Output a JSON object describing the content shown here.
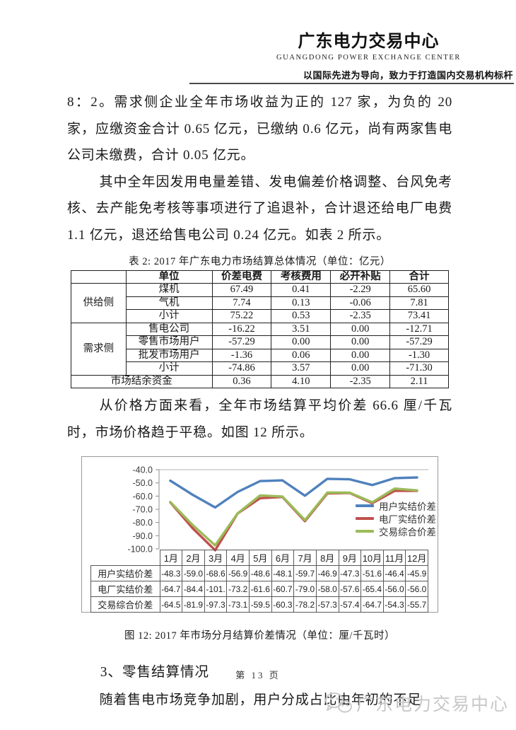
{
  "header": {
    "org_name_cn": "广东电力交易中心",
    "org_name_en": "GUANGDONG  POWER  EXCHANGE  CENTER",
    "tagline": "以国际先进为导向，致力于打造国内交易机构标杆"
  },
  "paragraphs": {
    "p1": "8：2。需求侧企业全年市场收益为正的 127 家，为负的 20 家，应缴资金合计 0.65 亿元，已缴纳 0.6 亿元，尚有两家售电公司未缴费，合计 0.05 亿元。",
    "p2": "其中全年因发用电量差错、发电偏差价格调整、台风免考核、去产能免考核等事项进行了追退补，合计退还给电厂电费 1.1 亿元，退还给售电公司 0.24 亿元。如表 2 所示。",
    "p3": "从价格方面来看，全年市场结算平均价差 66.6 厘/千瓦时，市场价格趋于平稳。如图 12 所示。",
    "section_heading": "3、零售结算情况",
    "p4": "随着售电市场竞争加剧，用户分成占比由年初的不足"
  },
  "table2": {
    "title": "表 2: 2017 年广东电力市场结算总体情况（单位：亿元）",
    "header": {
      "unit": "单位",
      "col1": "价差电费",
      "col2": "考核费用",
      "col3": "必开补贴",
      "col4": "合计"
    },
    "supply": {
      "label": "供给侧",
      "rows": [
        {
          "name": "煤机",
          "c1": "67.49",
          "c2": "0.41",
          "c3": "-2.29",
          "c4": "65.60"
        },
        {
          "name": "气机",
          "c1": "7.74",
          "c2": "0.13",
          "c3": "-0.06",
          "c4": "7.81"
        },
        {
          "name": "小计",
          "c1": "75.22",
          "c2": "0.53",
          "c3": "-2.35",
          "c4": "73.41"
        }
      ]
    },
    "demand": {
      "label": "需求侧",
      "rows": [
        {
          "name": "售电公司",
          "c1": "-16.22",
          "c2": "3.51",
          "c3": "0.00",
          "c4": "-12.71"
        },
        {
          "name": "零售市场用户",
          "c1": "-57.29",
          "c2": "0.00",
          "c3": "0.00",
          "c4": "-57.29"
        },
        {
          "name": "批发市场用户",
          "c1": "-1.36",
          "c2": "0.06",
          "c3": "0.00",
          "c4": "-1.30"
        },
        {
          "name": "小计",
          "c1": "-74.86",
          "c2": "3.57",
          "c3": "0.00",
          "c4": "-71.30"
        }
      ]
    },
    "surplus": {
      "label": "市场结余资金",
      "c1": "0.36",
      "c2": "4.10",
      "c3": "-2.35",
      "c4": "2.11"
    }
  },
  "chart_data": {
    "type": "line",
    "title": "2017 年市场分月结算价差情况",
    "unit": "厘/千瓦时",
    "categories": [
      "1月",
      "2月",
      "3月",
      "4月",
      "5月",
      "6月",
      "7月",
      "8月",
      "9月",
      "10月",
      "11月",
      "12月"
    ],
    "series": [
      {
        "name": "用户实结价差",
        "color": "#4F81BD",
        "values": [
          -48.3,
          -59.0,
          -68.6,
          -56.9,
          -48.6,
          -48.1,
          -59.7,
          -46.9,
          -47.3,
          -51.6,
          -46.4,
          -45.9
        ],
        "display": [
          "-48.3",
          "-59.0",
          "-68.6",
          "-56.9",
          "-48.6",
          "-48.1",
          "-59.7",
          "-46.9",
          "-47.3",
          "-51.6",
          "-46.4",
          "-45.9"
        ]
      },
      {
        "name": "电厂实结价差",
        "color": "#C0504D",
        "values": [
          -64.7,
          -84.4,
          -101.0,
          -73.2,
          -61.6,
          -60.7,
          -79.0,
          -58.0,
          -57.6,
          -65.4,
          -56.0,
          -56.0
        ],
        "display": [
          "-64.7",
          "-84.4",
          "-101.",
          "-73.2",
          "-61.6",
          "-60.7",
          "-79.0",
          "-58.0",
          "-57.6",
          "-65.4",
          "-56.0",
          "-56.0"
        ]
      },
      {
        "name": "交易综合价差",
        "color": "#9BBB59",
        "values": [
          -64.5,
          -81.9,
          -97.3,
          -73.1,
          -59.5,
          -60.3,
          -78.2,
          -57.3,
          -57.4,
          -64.7,
          -54.3,
          -55.7
        ],
        "display": [
          "-64.5",
          "-81.9",
          "-97.3",
          "-73.1",
          "-59.5",
          "-60.3",
          "-78.2",
          "-57.3",
          "-57.4",
          "-64.7",
          "-54.3",
          "-55.7"
        ]
      }
    ],
    "ylim": [
      -100,
      -40
    ],
    "yticks": [
      "-40.0",
      "-50.0",
      "-60.0",
      "-70.0",
      "-80.0",
      "-90.0",
      "-100.0"
    ],
    "legend_position": "right-inside",
    "grid": false
  },
  "figure_caption": "图 12: 2017 年市场分月结算价差情况（单位：厘/千瓦时）",
  "footer": {
    "page_label": "第 13 页"
  },
  "watermark": {
    "icon": "wechat-icon",
    "text": "广东电力交易中心"
  }
}
